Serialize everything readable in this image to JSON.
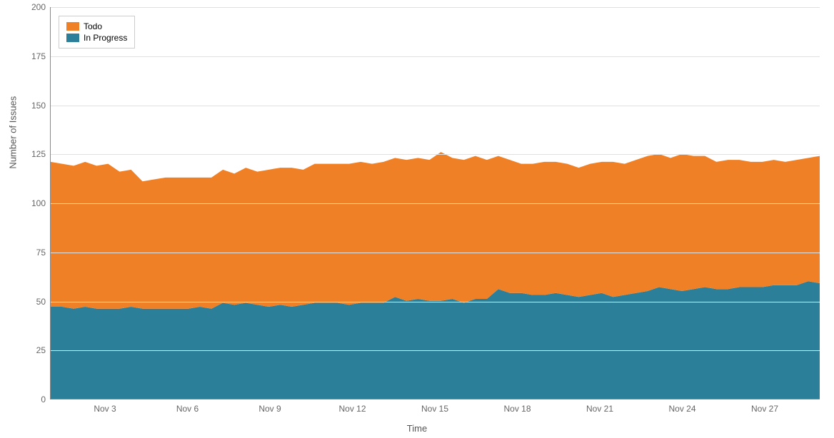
{
  "chart": {
    "type": "stacked-area",
    "y_axis_label": "Number of Issues",
    "x_axis_label": "Time",
    "ylim": [
      0,
      200
    ],
    "y_ticks": [
      0,
      25,
      50,
      75,
      100,
      125,
      150,
      175,
      200
    ],
    "x_ticks": [
      "Nov 3",
      "Nov 6",
      "Nov 9",
      "Nov 12",
      "Nov 15",
      "Nov 18",
      "Nov 21",
      "Nov 24",
      "Nov 27"
    ],
    "x_domain_days": 28,
    "x_tick_days": [
      2,
      5,
      8,
      11,
      14,
      17,
      20,
      23,
      26
    ],
    "background_color": "#ffffff",
    "grid_color": "#e0e0e0",
    "axis_color": "#888888",
    "tick_label_fontsize": 12,
    "axis_label_fontsize": 13,
    "tick_label_color": "#666666",
    "axis_label_color": "#555555",
    "legend": {
      "position": "top-left",
      "border_color": "#cccccc",
      "background_color": "#ffffff",
      "fontsize": 12,
      "items": [
        {
          "label": "Todo",
          "color": "#f08026"
        },
        {
          "label": "In Progress",
          "color": "#2b7f99"
        }
      ]
    },
    "series": [
      {
        "name": "In Progress",
        "color": "#2b7f99",
        "order": 0,
        "values": [
          47,
          47,
          46,
          47,
          46,
          46,
          46,
          47,
          46,
          46,
          46,
          46,
          46,
          47,
          46,
          49,
          48,
          49,
          48,
          47,
          48,
          47,
          48,
          49,
          49,
          49,
          48,
          49,
          49,
          49,
          52,
          50,
          51,
          50,
          50,
          51,
          49,
          51,
          51,
          56,
          54,
          54,
          53,
          53,
          54,
          53,
          52,
          53,
          54,
          52,
          53,
          54,
          55,
          57,
          56,
          55,
          56,
          57,
          56,
          56,
          57,
          57,
          57,
          58,
          58,
          58,
          60,
          59
        ]
      },
      {
        "name": "Todo",
        "color": "#f08026",
        "order": 1,
        "values": [
          74,
          73,
          73,
          74,
          73,
          74,
          70,
          70,
          65,
          66,
          67,
          67,
          67,
          66,
          67,
          68,
          67,
          69,
          68,
          70,
          70,
          71,
          69,
          71,
          71,
          71,
          72,
          72,
          71,
          72,
          71,
          72,
          72,
          72,
          76,
          72,
          73,
          73,
          71,
          68,
          68,
          66,
          67,
          68,
          67,
          67,
          66,
          67,
          67,
          69,
          67,
          68,
          69,
          68,
          67,
          70,
          68,
          67,
          65,
          66,
          65,
          64,
          64,
          64,
          63,
          64,
          63,
          65
        ]
      }
    ]
  }
}
